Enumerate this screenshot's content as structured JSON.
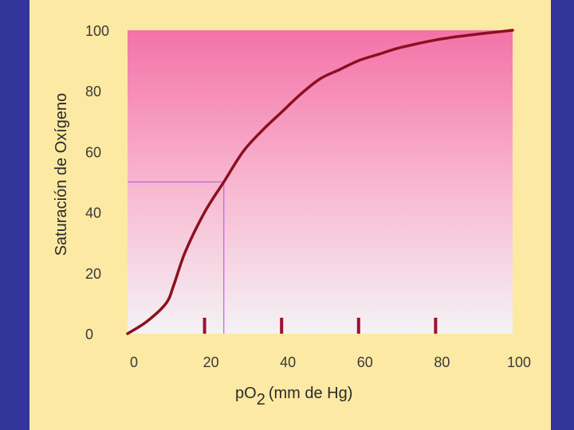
{
  "chart_data": {
    "type": "line",
    "title": "",
    "xlabel": "pO",
    "xlabel_sub": "2",
    "xlabel_unit": "(mm de Hg)",
    "ylabel": "Saturación de Oxígeno",
    "xlim": [
      0,
      100
    ],
    "ylim": [
      0,
      100
    ],
    "x_ticks": [
      "0",
      "20",
      "40",
      "60",
      "80",
      "100"
    ],
    "y_ticks": [
      "0",
      "20",
      "40",
      "60",
      "80",
      "100"
    ],
    "series": [
      {
        "color": "#8b1020",
        "x": [
          0,
          5,
          10,
          12,
          15,
          20,
          25,
          30,
          35,
          40,
          45,
          50,
          55,
          60,
          65,
          70,
          75,
          80,
          85,
          90,
          95,
          100
        ],
        "y": [
          0,
          4,
          10,
          16,
          27,
          40,
          50,
          60,
          67,
          73,
          79,
          84,
          87,
          90,
          92,
          94,
          95.5,
          96.8,
          97.8,
          98.6,
          99.3,
          100
        ]
      }
    ],
    "reference": {
      "x": 25,
      "y": 50,
      "color": "#c060e0"
    },
    "marker_x": [
      20,
      40,
      60,
      80
    ],
    "marker_color": "#a01030",
    "plot_gradient": [
      "#f472a8",
      "#f8b6cf",
      "#f4f2f4"
    ],
    "background_color": "#fce9a3",
    "frame_color": "#33359a"
  }
}
